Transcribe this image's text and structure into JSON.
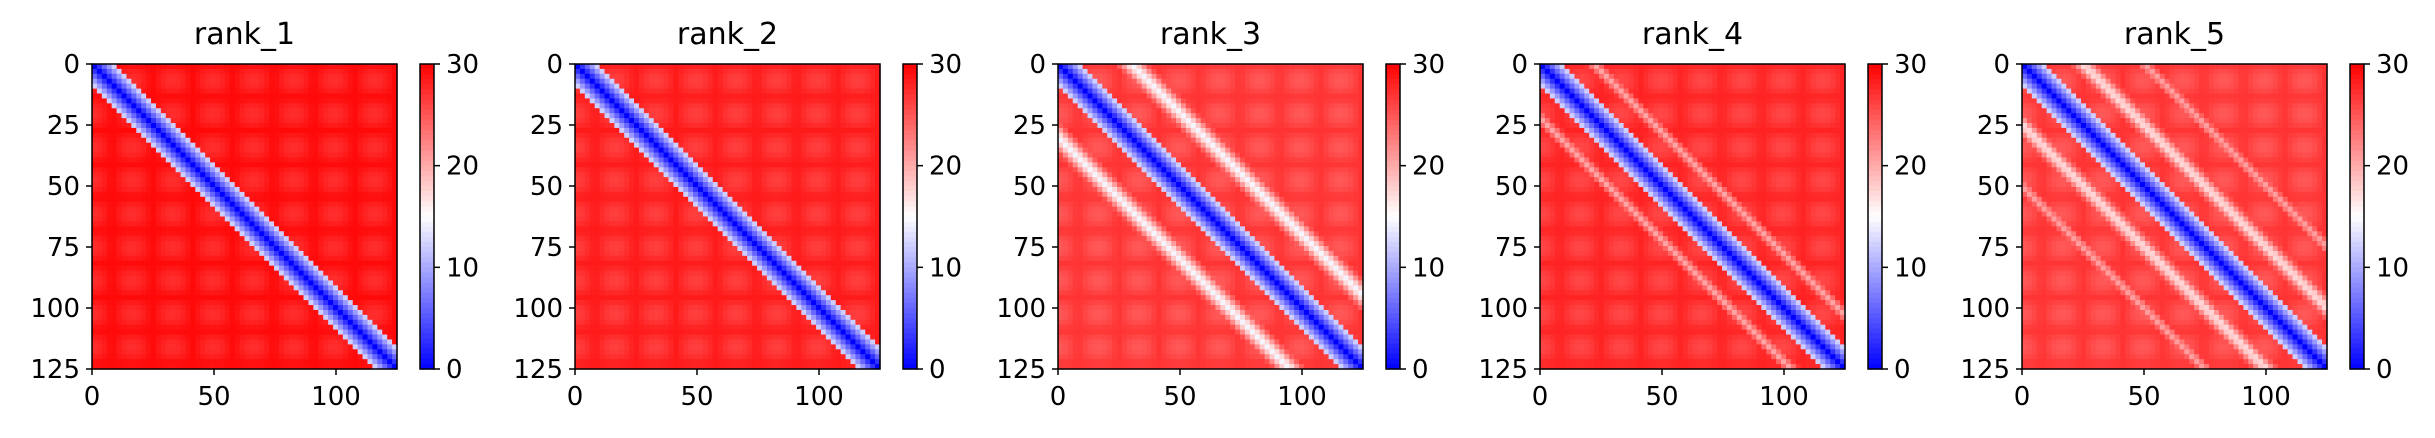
{
  "chart_data": [
    {
      "type": "heatmap",
      "title": "rank_1",
      "matrix_size": 125,
      "xlim": [
        0,
        125
      ],
      "ylim": [
        125,
        0
      ],
      "x_ticks": [
        0,
        50,
        100
      ],
      "y_ticks": [
        0,
        25,
        50,
        75,
        100,
        125
      ],
      "colormap": "bwr",
      "colorbar": {
        "min": 0,
        "max": 30,
        "ticks": [
          0,
          10,
          20,
          30
        ]
      },
      "diagonal_band": {
        "center_value": 0,
        "halfwidth": 6
      },
      "background_value": 29.5,
      "secondary_bands": []
    },
    {
      "type": "heatmap",
      "title": "rank_2",
      "matrix_size": 125,
      "xlim": [
        0,
        125
      ],
      "ylim": [
        125,
        0
      ],
      "x_ticks": [
        0,
        50,
        100
      ],
      "y_ticks": [
        0,
        25,
        50,
        75,
        100,
        125
      ],
      "colormap": "bwr",
      "colorbar": {
        "min": 0,
        "max": 30,
        "ticks": [
          0,
          10,
          20,
          30
        ]
      },
      "diagonal_band": {
        "center_value": 0,
        "halfwidth": 6
      },
      "background_value": 28.5,
      "secondary_bands": []
    },
    {
      "type": "heatmap",
      "title": "rank_3",
      "matrix_size": 125,
      "xlim": [
        0,
        125
      ],
      "ylim": [
        125,
        0
      ],
      "x_ticks": [
        0,
        50,
        100
      ],
      "y_ticks": [
        0,
        25,
        50,
        75,
        100,
        125
      ],
      "colormap": "bwr",
      "colorbar": {
        "min": 0,
        "max": 30,
        "ticks": [
          0,
          10,
          20,
          30
        ]
      },
      "diagonal_band": {
        "center_value": 0,
        "halfwidth": 6
      },
      "background_value": 27,
      "secondary_bands": [
        {
          "offset": 30,
          "value": 14
        },
        {
          "offset": -30,
          "value": 14
        }
      ]
    },
    {
      "type": "heatmap",
      "title": "rank_4",
      "matrix_size": 125,
      "xlim": [
        0,
        125
      ],
      "ylim": [
        125,
        0
      ],
      "x_ticks": [
        0,
        50,
        100
      ],
      "y_ticks": [
        0,
        25,
        50,
        75,
        100,
        125
      ],
      "colormap": "bwr",
      "colorbar": {
        "min": 0,
        "max": 30,
        "ticks": [
          0,
          10,
          20,
          30
        ]
      },
      "diagonal_band": {
        "center_value": 0,
        "halfwidth": 6
      },
      "background_value": 28,
      "secondary_bands": [
        {
          "offset": 22,
          "value": 20
        },
        {
          "offset": -22,
          "value": 20
        }
      ]
    },
    {
      "type": "heatmap",
      "title": "rank_5",
      "matrix_size": 125,
      "xlim": [
        0,
        125
      ],
      "ylim": [
        125,
        0
      ],
      "x_ticks": [
        0,
        50,
        100
      ],
      "y_ticks": [
        0,
        25,
        50,
        75,
        100,
        125
      ],
      "colormap": "bwr",
      "colorbar": {
        "min": 0,
        "max": 30,
        "ticks": [
          0,
          10,
          20,
          30
        ]
      },
      "diagonal_band": {
        "center_value": 0,
        "halfwidth": 6
      },
      "background_value": 27,
      "secondary_bands": [
        {
          "offset": 25,
          "value": 16
        },
        {
          "offset": -25,
          "value": 16
        },
        {
          "offset": 50,
          "value": 20
        },
        {
          "offset": -50,
          "value": 20
        }
      ]
    }
  ]
}
